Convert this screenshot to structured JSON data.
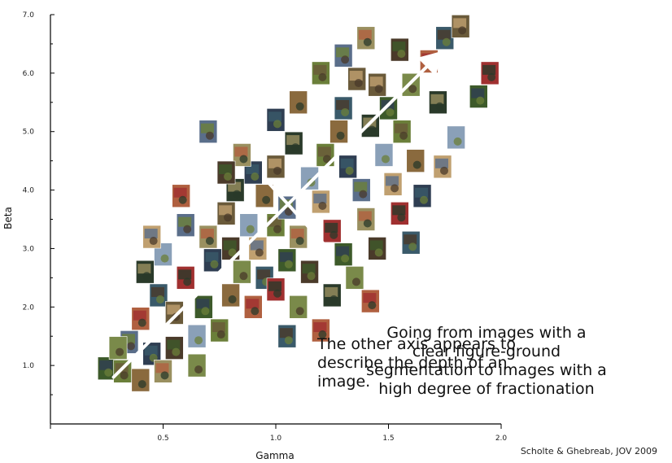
{
  "chart_data": {
    "type": "scatter",
    "xlabel": "Gamma",
    "ylabel": "Beta",
    "xlim": [
      0,
      2.0
    ],
    "ylim": [
      0.0,
      7.0
    ],
    "xticks": [
      0,
      0.5,
      1.0,
      1.5,
      2.0
    ],
    "xtick_labels": [
      "",
      "0.5",
      "1.0",
      "1.5",
      "2.0"
    ],
    "yticks": [
      1.0,
      2.0,
      3.0,
      4.0,
      5.0,
      6.0,
      7.0
    ],
    "ytick_labels": [
      "1.0",
      "2.0",
      "3.0",
      "4.0",
      "5.0",
      "6.0",
      "7.0"
    ],
    "grid": false,
    "point_style": "image-thumbnails",
    "points": [
      {
        "x": 0.25,
        "y": 0.95
      },
      {
        "x": 0.32,
        "y": 0.9
      },
      {
        "x": 0.4,
        "y": 0.75
      },
      {
        "x": 0.45,
        "y": 1.2
      },
      {
        "x": 0.35,
        "y": 1.4
      },
      {
        "x": 0.5,
        "y": 0.9
      },
      {
        "x": 0.55,
        "y": 1.3
      },
      {
        "x": 0.65,
        "y": 1.0
      },
      {
        "x": 0.4,
        "y": 1.8
      },
      {
        "x": 0.48,
        "y": 2.2
      },
      {
        "x": 0.55,
        "y": 1.9
      },
      {
        "x": 0.42,
        "y": 2.6
      },
      {
        "x": 0.5,
        "y": 2.9
      },
      {
        "x": 0.45,
        "y": 3.2
      },
      {
        "x": 0.6,
        "y": 2.5
      },
      {
        "x": 0.68,
        "y": 2.0
      },
      {
        "x": 0.75,
        "y": 1.6
      },
      {
        "x": 0.8,
        "y": 2.2
      },
      {
        "x": 0.72,
        "y": 2.8
      },
      {
        "x": 0.6,
        "y": 3.4
      },
      {
        "x": 0.7,
        "y": 3.2
      },
      {
        "x": 0.8,
        "y": 3.0
      },
      {
        "x": 0.85,
        "y": 2.6
      },
      {
        "x": 0.9,
        "y": 2.0
      },
      {
        "x": 0.95,
        "y": 2.5
      },
      {
        "x": 0.78,
        "y": 3.6
      },
      {
        "x": 0.82,
        "y": 4.0
      },
      {
        "x": 0.88,
        "y": 3.4
      },
      {
        "x": 0.92,
        "y": 3.0
      },
      {
        "x": 1.0,
        "y": 2.3
      },
      {
        "x": 1.05,
        "y": 2.8
      },
      {
        "x": 1.0,
        "y": 3.4
      },
      {
        "x": 0.95,
        "y": 3.9
      },
      {
        "x": 0.9,
        "y": 4.3
      },
      {
        "x": 1.05,
        "y": 3.7
      },
      {
        "x": 1.1,
        "y": 3.2
      },
      {
        "x": 1.15,
        "y": 2.6
      },
      {
        "x": 1.1,
        "y": 2.0
      },
      {
        "x": 1.2,
        "y": 1.6
      },
      {
        "x": 1.05,
        "y": 1.5
      },
      {
        "x": 1.0,
        "y": 4.4
      },
      {
        "x": 1.08,
        "y": 4.8
      },
      {
        "x": 1.15,
        "y": 4.2
      },
      {
        "x": 1.2,
        "y": 3.8
      },
      {
        "x": 1.25,
        "y": 3.3
      },
      {
        "x": 1.3,
        "y": 2.9
      },
      {
        "x": 1.22,
        "y": 4.6
      },
      {
        "x": 1.28,
        "y": 5.0
      },
      {
        "x": 1.32,
        "y": 4.4
      },
      {
        "x": 1.38,
        "y": 4.0
      },
      {
        "x": 1.4,
        "y": 3.5
      },
      {
        "x": 1.45,
        "y": 3.0
      },
      {
        "x": 1.35,
        "y": 2.5
      },
      {
        "x": 1.42,
        "y": 2.1
      },
      {
        "x": 1.3,
        "y": 5.4
      },
      {
        "x": 1.36,
        "y": 5.9
      },
      {
        "x": 1.42,
        "y": 5.1
      },
      {
        "x": 1.48,
        "y": 4.6
      },
      {
        "x": 1.52,
        "y": 4.1
      },
      {
        "x": 1.55,
        "y": 3.6
      },
      {
        "x": 1.5,
        "y": 5.4
      },
      {
        "x": 1.56,
        "y": 5.0
      },
      {
        "x": 1.62,
        "y": 4.5
      },
      {
        "x": 1.65,
        "y": 3.9
      },
      {
        "x": 1.3,
        "y": 6.3
      },
      {
        "x": 1.4,
        "y": 6.6
      },
      {
        "x": 1.55,
        "y": 6.4
      },
      {
        "x": 1.6,
        "y": 5.8
      },
      {
        "x": 1.68,
        "y": 6.2
      },
      {
        "x": 1.75,
        "y": 6.6
      },
      {
        "x": 1.82,
        "y": 6.8
      },
      {
        "x": 1.72,
        "y": 5.5
      },
      {
        "x": 1.8,
        "y": 4.9
      },
      {
        "x": 1.74,
        "y": 4.4
      },
      {
        "x": 1.95,
        "y": 6.0
      },
      {
        "x": 1.9,
        "y": 5.6
      },
      {
        "x": 1.2,
        "y": 6.0
      },
      {
        "x": 1.1,
        "y": 5.5
      },
      {
        "x": 1.0,
        "y": 5.2
      },
      {
        "x": 0.7,
        "y": 5.0
      },
      {
        "x": 0.85,
        "y": 4.6
      },
      {
        "x": 0.78,
        "y": 4.3
      },
      {
        "x": 0.3,
        "y": 1.3
      },
      {
        "x": 0.58,
        "y": 3.9
      },
      {
        "x": 1.6,
        "y": 3.1
      },
      {
        "x": 1.45,
        "y": 5.8
      },
      {
        "x": 1.25,
        "y": 2.2
      },
      {
        "x": 0.65,
        "y": 1.5
      }
    ],
    "arrows": [
      {
        "from": [
          0.28,
          0.8
        ],
        "to": [
          1.72,
          6.3
        ]
      },
      {
        "from": [
          0.95,
          4.2
        ],
        "to": [
          1.22,
          3.05
        ]
      }
    ]
  },
  "overlay": {
    "note_1": "Going from images with a\nclear figure-ground\nsegmentation to images with a\nhigh degree of fractionation",
    "note_2": "The other axis appears to\ndescribe the depth of an\nimage.",
    "credit": "Scholte & Ghebreab, JOV 2009"
  },
  "colors": {
    "axis": "#000000",
    "arrow": "#ffffff",
    "thumb_palette": [
      "#3d5a2a",
      "#6b7f3a",
      "#8a6a3e",
      "#2f3e52",
      "#5a6e8a",
      "#9a9060",
      "#4a3a2a",
      "#7a8a4a",
      "#b06040",
      "#3a5a6a",
      "#6a5a3a",
      "#2a3a2a",
      "#8aa0b8",
      "#c0a070",
      "#a03030"
    ]
  }
}
